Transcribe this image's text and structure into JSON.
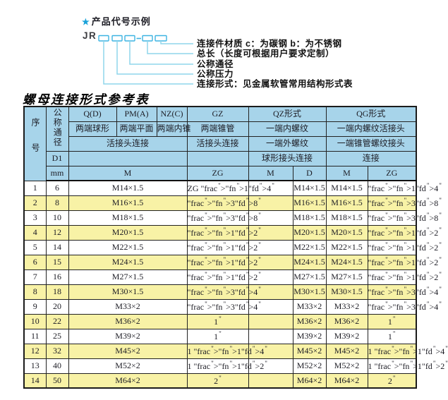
{
  "colors": {
    "header_blue": "#a7d4ea",
    "row_yellow": "#f8f2a6",
    "line_cyan": "#8fd5ec",
    "box_cyan": "#3db4e2",
    "star_blue": "#19a2d9"
  },
  "diagram": {
    "star": "★",
    "title": "产品代号示例",
    "code_prefix": "JR",
    "labels": [
      "连接件材质  c：为碳钢  b：为不锈钢",
      "总长（长度可根据用户要求定制）",
      "公称通径",
      "公称压力",
      "连接形式：见金属软管常用结构形式表"
    ]
  },
  "table": {
    "title": "螺母连接形式参考表",
    "header": {
      "seq": "序号",
      "dn": "公称通径",
      "d1": "D1",
      "mm": "mm",
      "col_groups": [
        "Q(D)",
        "PM(A)",
        "NZ(C)",
        "GZ",
        "QZ形式",
        "QG形式"
      ],
      "row2": [
        "两端球形",
        "两端平面",
        "两端内锥",
        "两端锥管",
        "一端内螺纹",
        "一端内螺纹活接头"
      ],
      "row3": [
        "活接头连接",
        "活接头连接",
        "一端外螺纹",
        "一端锥管螺纹接头"
      ],
      "row4": [
        "球形接头连接",
        "连接"
      ],
      "row5": [
        "M",
        "ZG",
        "M",
        "D",
        "M",
        "ZG"
      ]
    },
    "rows": [
      {
        "seq": "1",
        "dn": "6",
        "m": "M14×1.5",
        "gz": "ZG 1/4\"",
        "qz_m": "",
        "qz_d": "M14×1.5",
        "qg_m": "M14×1.5",
        "qg_zg": "1/4\""
      },
      {
        "seq": "2",
        "dn": "8",
        "m": "M16×1.5",
        "gz": "3/8\"",
        "qz_m": "",
        "qz_d": "M16×1.5",
        "qg_m": "M16×1.5",
        "qg_zg": "3/8\""
      },
      {
        "seq": "3",
        "dn": "10",
        "m": "M18×1.5",
        "gz": "3/8\"",
        "qz_m": "",
        "qz_d": "M18×1.5",
        "qg_m": "M18×1.5",
        "qg_zg": "3/8\""
      },
      {
        "seq": "4",
        "dn": "12",
        "m": "M20×1.5",
        "gz": "1/2\"",
        "qz_m": "",
        "qz_d": "M20×1.5",
        "qg_m": "M20×1.5",
        "qg_zg": "1/2\""
      },
      {
        "seq": "5",
        "dn": "14",
        "m": "M22×1.5",
        "gz": "1/2\"",
        "qz_m": "",
        "qz_d": "M22×1.5",
        "qg_m": "M22×1.5",
        "qg_zg": "1/2\""
      },
      {
        "seq": "6",
        "dn": "15",
        "m": "M24×1.5",
        "gz": "1/2\"",
        "qz_m": "",
        "qz_d": "M24×1.5",
        "qg_m": "M24×1.5",
        "qg_zg": "1/2\""
      },
      {
        "seq": "7",
        "dn": "16",
        "m": "M27×1.5",
        "gz": "1/2\"",
        "qz_m": "",
        "qz_d": "M27×1.5",
        "qg_m": "M27×1.5",
        "qg_zg": "1/2\""
      },
      {
        "seq": "8",
        "dn": "18",
        "m": "M30×1.5",
        "gz": "3/4\"",
        "qz_m": "",
        "qz_d": "M30×1.5",
        "qg_m": "M30×1.5",
        "qg_zg": "3/4\""
      },
      {
        "seq": "9",
        "dn": "20",
        "m": "M33×2",
        "gz": "3/4\"",
        "qz_m": "",
        "qz_d": "M33×2",
        "qg_m": "M33×2",
        "qg_zg": "3/4\""
      },
      {
        "seq": "10",
        "dn": "22",
        "m": "M36×2",
        "gz": "1\"",
        "qz_m": "",
        "qz_d": "M36×2",
        "qg_m": "M36×2",
        "qg_zg": "1\""
      },
      {
        "seq": "11",
        "dn": "25",
        "m": "M39×2",
        "gz": "1\"",
        "qz_m": "",
        "qz_d": "M39×2",
        "qg_m": "M39×2",
        "qg_zg": "1\""
      },
      {
        "seq": "12",
        "dn": "32",
        "m": "M45×2",
        "gz": "1 1/4\"",
        "qz_m": "",
        "qz_d": "M45×2",
        "qg_m": "M45×2",
        "qg_zg": "1 1/4\""
      },
      {
        "seq": "13",
        "dn": "40",
        "m": "M52×2",
        "gz": "1 1/2\"",
        "qz_m": "",
        "qz_d": "M52×2",
        "qg_m": "M52×2",
        "qg_zg": "1 1/2\""
      },
      {
        "seq": "14",
        "dn": "50",
        "m": "M64×2",
        "gz": "2\"",
        "qz_m": "",
        "qz_d": "M64×2",
        "qg_m": "M64×2",
        "qg_zg": "2\""
      }
    ]
  }
}
